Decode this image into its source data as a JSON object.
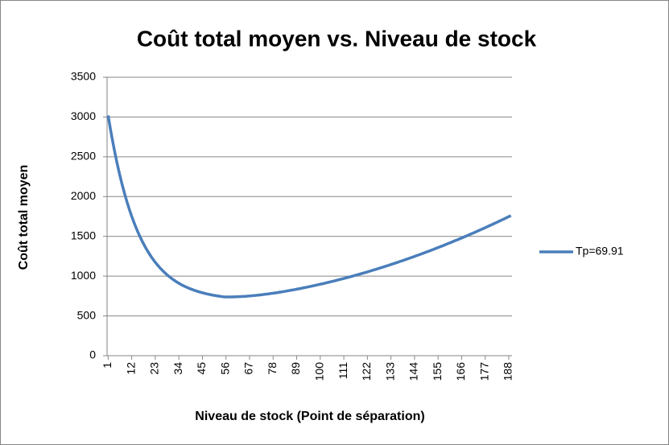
{
  "chart_data": {
    "type": "line",
    "title": "Coût total moyen vs. Niveau de stock",
    "x_label": "Niveau de stock (Point de séparation)",
    "y_label": "Coût total moyen",
    "x": [
      1,
      2,
      3,
      4,
      5,
      6,
      7,
      8,
      9,
      10,
      11,
      12,
      13,
      14,
      15,
      16,
      17,
      18,
      19,
      20,
      21,
      22,
      23,
      24,
      25,
      26,
      27,
      28,
      29,
      30,
      31,
      32,
      33,
      34,
      35,
      36,
      37,
      38,
      39,
      40,
      41,
      42,
      43,
      44,
      45,
      46,
      47,
      48,
      49,
      50,
      51,
      52,
      53,
      54,
      55,
      56,
      57,
      58,
      59,
      60,
      61,
      62,
      63,
      64,
      65,
      66,
      67,
      68,
      69,
      70,
      71,
      72,
      73,
      74,
      75,
      76,
      77,
      78,
      79,
      80,
      81,
      82,
      83,
      84,
      85,
      86,
      87,
      88,
      89,
      90,
      91,
      92,
      93,
      94,
      95,
      96,
      97,
      98,
      99,
      100,
      101,
      102,
      103,
      104,
      105,
      106,
      107,
      108,
      109,
      110,
      111,
      112,
      113,
      114,
      115,
      116,
      117,
      118,
      119,
      120,
      121,
      122,
      123,
      124,
      125,
      126,
      127,
      128,
      129,
      130,
      131,
      132,
      133,
      134,
      135,
      136,
      137,
      138,
      139,
      140,
      141,
      142,
      143,
      144,
      145,
      146,
      147,
      148,
      149,
      150,
      151,
      152,
      153,
      154,
      155,
      156,
      157,
      158,
      159,
      160,
      161,
      162,
      163,
      164,
      165,
      166,
      167,
      168,
      169,
      170,
      171,
      172,
      173,
      174,
      175,
      176,
      177,
      178,
      179,
      180,
      181,
      182,
      183,
      184,
      185,
      186,
      187,
      188,
      189
    ],
    "series": [
      {
        "name": "Tp=69.91",
        "color": "#4a7ebb",
        "values": [
          3020,
          2859,
          2710,
          2571,
          2441,
          2320,
          2208,
          2103,
          2006,
          1915,
          1831,
          1752,
          1679,
          1611,
          1547,
          1488,
          1433,
          1382,
          1334,
          1290,
          1248,
          1210,
          1174,
          1141,
          1110,
          1081,
          1054,
          1029,
          1005,
          984,
          963,
          945,
          927,
          911,
          895,
          881,
          868,
          856,
          844,
          834,
          824,
          815,
          806,
          798,
          791,
          784,
          777,
          771,
          766,
          760,
          756,
          751,
          747,
          743,
          739,
          739,
          739,
          739,
          739,
          740,
          741,
          742,
          743,
          745,
          746,
          748,
          751,
          753,
          756,
          758,
          761,
          764,
          767,
          771,
          774,
          778,
          782,
          785,
          789,
          793,
          798,
          802,
          806,
          811,
          816,
          821,
          826,
          830,
          836,
          841,
          846,
          852,
          857,
          863,
          868,
          874,
          880,
          886,
          892,
          898,
          904,
          910,
          917,
          923,
          930,
          936,
          943,
          950,
          957,
          964,
          971,
          978,
          985,
          992,
          1000,
          1007,
          1015,
          1022,
          1030,
          1038,
          1045,
          1053,
          1061,
          1070,
          1078,
          1086,
          1094,
          1103,
          1111,
          1120,
          1128,
          1137,
          1146,
          1155,
          1164,
          1173,
          1182,
          1191,
          1200,
          1210,
          1219,
          1229,
          1238,
          1248,
          1258,
          1267,
          1277,
          1287,
          1297,
          1307,
          1318,
          1328,
          1338,
          1349,
          1359,
          1370,
          1380,
          1391,
          1402,
          1413,
          1424,
          1435,
          1446,
          1457,
          1468,
          1479,
          1491,
          1502,
          1514,
          1526,
          1537,
          1549,
          1561,
          1573,
          1585,
          1597,
          1609,
          1622,
          1634,
          1646,
          1659,
          1671,
          1684,
          1697,
          1709,
          1722,
          1735,
          1748,
          1761
        ]
      }
    ],
    "xlim": [
      0.5,
      189.5
    ],
    "xticks": [
      1,
      12,
      23,
      34,
      45,
      56,
      67,
      78,
      89,
      100,
      111,
      122,
      133,
      144,
      155,
      166,
      177,
      188
    ],
    "ylim": [
      0,
      3500
    ],
    "yticks": [
      0,
      500,
      1000,
      1500,
      2000,
      2500,
      3000,
      3500
    ],
    "grid": true,
    "legend": "right"
  }
}
